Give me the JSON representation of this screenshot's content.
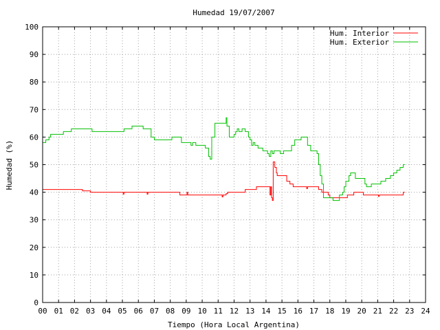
{
  "chart_data": {
    "type": "line",
    "title": "Humedad 19/07/2007",
    "xlabel": "Tiempo (Hora Local Argentina)",
    "ylabel": "Humedad (%)",
    "xlim": [
      0,
      24
    ],
    "ylim": [
      0,
      100
    ],
    "x_tick_labels": [
      "00",
      "01",
      "02",
      "03",
      "04",
      "05",
      "06",
      "07",
      "08",
      "09",
      "10",
      "11",
      "12",
      "13",
      "14",
      "15",
      "16",
      "17",
      "18",
      "19",
      "20",
      "21",
      "22",
      "23",
      "24"
    ],
    "y_ticks": [
      0,
      10,
      20,
      30,
      40,
      50,
      60,
      70,
      80,
      90,
      100
    ],
    "grid": true,
    "legend_position": "top-right",
    "series": [
      {
        "name": "Hum. Interior",
        "color": "#ff0000",
        "points": [
          [
            0,
            41
          ],
          [
            2.4,
            41
          ],
          [
            2.5,
            40.5
          ],
          [
            2.9,
            40.5
          ],
          [
            3.0,
            40
          ],
          [
            5.0,
            40
          ],
          [
            5.05,
            39.3
          ],
          [
            5.1,
            40
          ],
          [
            6.5,
            40
          ],
          [
            6.55,
            39.3
          ],
          [
            6.6,
            40
          ],
          [
            8.5,
            40
          ],
          [
            8.6,
            39
          ],
          [
            9.0,
            39
          ],
          [
            9.05,
            40
          ],
          [
            9.1,
            39
          ],
          [
            11.2,
            39
          ],
          [
            11.25,
            38.3
          ],
          [
            11.3,
            39
          ],
          [
            11.5,
            39.5
          ],
          [
            11.6,
            40
          ],
          [
            12.6,
            40
          ],
          [
            12.7,
            41
          ],
          [
            13.3,
            41
          ],
          [
            13.4,
            42
          ],
          [
            14.2,
            42
          ],
          [
            14.25,
            39
          ],
          [
            14.3,
            42
          ],
          [
            14.35,
            38
          ],
          [
            14.4,
            37
          ],
          [
            14.45,
            51
          ],
          [
            14.55,
            49
          ],
          [
            14.65,
            47
          ],
          [
            14.7,
            46
          ],
          [
            15.2,
            46
          ],
          [
            15.3,
            44
          ],
          [
            15.5,
            43
          ],
          [
            15.6,
            43
          ],
          [
            15.7,
            42
          ],
          [
            16.0,
            42
          ],
          [
            16.5,
            42
          ],
          [
            16.55,
            41.3
          ],
          [
            16.6,
            42
          ],
          [
            17.2,
            42
          ],
          [
            17.3,
            41
          ],
          [
            17.5,
            40
          ],
          [
            17.8,
            40
          ],
          [
            17.9,
            39
          ],
          [
            18.0,
            38
          ],
          [
            19.0,
            38
          ],
          [
            19.1,
            39
          ],
          [
            19.4,
            39
          ],
          [
            19.5,
            40
          ],
          [
            20.0,
            40
          ],
          [
            20.1,
            39
          ],
          [
            21.0,
            39
          ],
          [
            21.05,
            38.5
          ],
          [
            21.1,
            39
          ],
          [
            22.5,
            39
          ],
          [
            22.6,
            40
          ],
          [
            22.7,
            40
          ]
        ]
      },
      {
        "name": "Hum. Exterior",
        "color": "#00c000",
        "points": [
          [
            0,
            58
          ],
          [
            0.2,
            59
          ],
          [
            0.4,
            60
          ],
          [
            0.5,
            61
          ],
          [
            1.2,
            61
          ],
          [
            1.3,
            62
          ],
          [
            1.7,
            62
          ],
          [
            1.8,
            63
          ],
          [
            3.0,
            63
          ],
          [
            3.1,
            62
          ],
          [
            5.0,
            62
          ],
          [
            5.1,
            63
          ],
          [
            5.5,
            63
          ],
          [
            5.6,
            64
          ],
          [
            6.2,
            64
          ],
          [
            6.3,
            63
          ],
          [
            6.6,
            63
          ],
          [
            6.8,
            60
          ],
          [
            7.0,
            59
          ],
          [
            8.0,
            59
          ],
          [
            8.1,
            60
          ],
          [
            8.6,
            60
          ],
          [
            8.7,
            58
          ],
          [
            9.2,
            58
          ],
          [
            9.3,
            57
          ],
          [
            9.4,
            58
          ],
          [
            9.6,
            57
          ],
          [
            10.0,
            57
          ],
          [
            10.2,
            56
          ],
          [
            10.4,
            53
          ],
          [
            10.5,
            52
          ],
          [
            10.6,
            60
          ],
          [
            10.8,
            65
          ],
          [
            11.4,
            65
          ],
          [
            11.5,
            67
          ],
          [
            11.55,
            64
          ],
          [
            11.7,
            60
          ],
          [
            12.0,
            61
          ],
          [
            12.1,
            62
          ],
          [
            12.2,
            63
          ],
          [
            12.3,
            62
          ],
          [
            12.5,
            63
          ],
          [
            12.7,
            62
          ],
          [
            12.9,
            60
          ],
          [
            13.0,
            59
          ],
          [
            13.1,
            57
          ],
          [
            13.2,
            58
          ],
          [
            13.3,
            57
          ],
          [
            13.5,
            56
          ],
          [
            13.7,
            56
          ],
          [
            13.8,
            55
          ],
          [
            14.0,
            55
          ],
          [
            14.1,
            54
          ],
          [
            14.2,
            53
          ],
          [
            14.3,
            55
          ],
          [
            14.4,
            54
          ],
          [
            14.5,
            55
          ],
          [
            14.8,
            55
          ],
          [
            14.9,
            54
          ],
          [
            15.1,
            55
          ],
          [
            15.4,
            55
          ],
          [
            15.6,
            57
          ],
          [
            15.8,
            59
          ],
          [
            16.1,
            59
          ],
          [
            16.2,
            60
          ],
          [
            16.4,
            60
          ],
          [
            16.6,
            57
          ],
          [
            16.8,
            55
          ],
          [
            17.0,
            55
          ],
          [
            17.2,
            54
          ],
          [
            17.3,
            50
          ],
          [
            17.4,
            46
          ],
          [
            17.5,
            43
          ],
          [
            17.6,
            38
          ],
          [
            18.1,
            38
          ],
          [
            18.2,
            37
          ],
          [
            18.5,
            37
          ],
          [
            18.6,
            39
          ],
          [
            18.8,
            40
          ],
          [
            18.9,
            42
          ],
          [
            19.0,
            44
          ],
          [
            19.2,
            46
          ],
          [
            19.3,
            47
          ],
          [
            19.5,
            47
          ],
          [
            19.6,
            45
          ],
          [
            20.0,
            45
          ],
          [
            20.2,
            43
          ],
          [
            20.3,
            42
          ],
          [
            20.5,
            42
          ],
          [
            20.6,
            43
          ],
          [
            20.8,
            43
          ],
          [
            21.0,
            43
          ],
          [
            21.2,
            44
          ],
          [
            21.5,
            45
          ],
          [
            21.8,
            46
          ],
          [
            22.0,
            47
          ],
          [
            22.2,
            48
          ],
          [
            22.4,
            49
          ],
          [
            22.6,
            50
          ],
          [
            22.7,
            50
          ]
        ]
      }
    ]
  }
}
